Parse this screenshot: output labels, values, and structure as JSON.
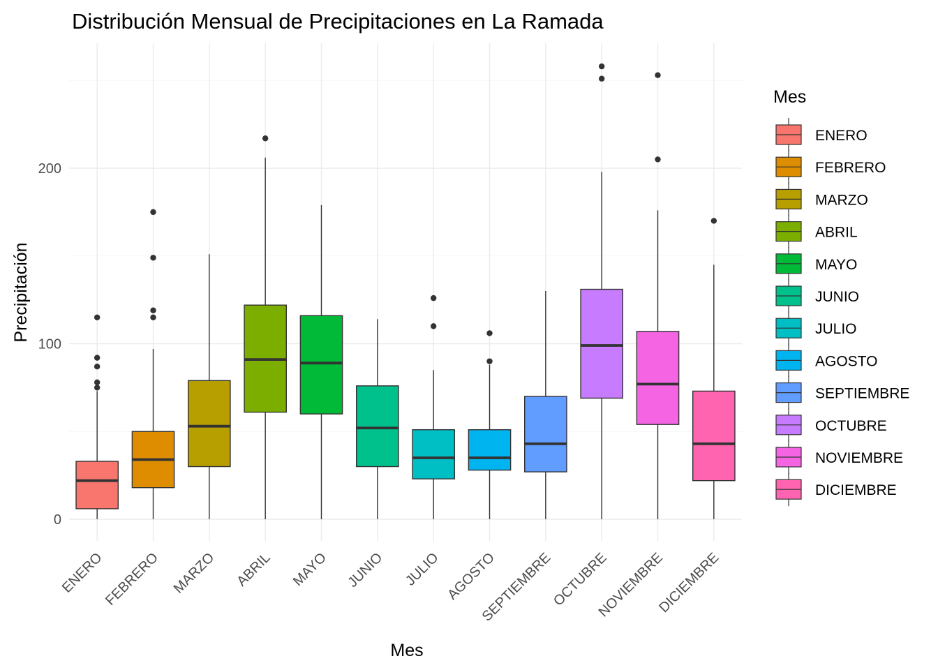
{
  "chart_data": {
    "type": "boxplot",
    "title": "Distribución Mensual de Precipitaciones en La Ramada",
    "xlabel": "Mes",
    "ylabel": "Precipitación",
    "ylim": [
      -15,
      270
    ],
    "yticks": [
      0,
      100,
      200
    ],
    "grid": true,
    "legend": {
      "title": "Mes",
      "position": "right"
    },
    "categories": [
      "ENERO",
      "FEBRERO",
      "MARZO",
      "ABRIL",
      "MAYO",
      "JUNIO",
      "JULIO",
      "AGOSTO",
      "SEPTIEMBRE",
      "OCTUBRE",
      "NOVIEMBRE",
      "DICIEMBRE"
    ],
    "series": [
      {
        "name": "ENERO",
        "color": "#F8766D",
        "whisker_low": 0,
        "q1": 6,
        "median": 22,
        "q3": 33,
        "whisker_high": 73,
        "outliers": [
          75,
          78,
          87,
          92,
          115
        ]
      },
      {
        "name": "FEBRERO",
        "color": "#DE8C00",
        "whisker_low": 0,
        "q1": 18,
        "median": 34,
        "q3": 50,
        "whisker_high": 97,
        "outliers": [
          115,
          119,
          149,
          175
        ]
      },
      {
        "name": "MARZO",
        "color": "#B79F00",
        "whisker_low": 0,
        "q1": 30,
        "median": 53,
        "q3": 79,
        "whisker_high": 151,
        "outliers": []
      },
      {
        "name": "ABRIL",
        "color": "#7CAE00",
        "whisker_low": 0,
        "q1": 61,
        "median": 91,
        "q3": 122,
        "whisker_high": 206,
        "outliers": [
          217
        ]
      },
      {
        "name": "MAYO",
        "color": "#00BA38",
        "whisker_low": 0,
        "q1": 60,
        "median": 89,
        "q3": 116,
        "whisker_high": 179,
        "outliers": []
      },
      {
        "name": "JUNIO",
        "color": "#00C08B",
        "whisker_low": 0,
        "q1": 30,
        "median": 52,
        "q3": 76,
        "whisker_high": 114,
        "outliers": []
      },
      {
        "name": "JULIO",
        "color": "#00BFC4",
        "whisker_low": 0,
        "q1": 23,
        "median": 35,
        "q3": 51,
        "whisker_high": 85,
        "outliers": [
          110,
          126
        ]
      },
      {
        "name": "AGOSTO",
        "color": "#00B4F0",
        "whisker_low": 0,
        "q1": 28,
        "median": 35,
        "q3": 51,
        "whisker_high": 88,
        "outliers": [
          90,
          106
        ]
      },
      {
        "name": "SEPTIEMBRE",
        "color": "#619CFF",
        "whisker_low": 0,
        "q1": 27,
        "median": 43,
        "q3": 70,
        "whisker_high": 130,
        "outliers": []
      },
      {
        "name": "OCTUBRE",
        "color": "#C77CFF",
        "whisker_low": 0,
        "q1": 69,
        "median": 99,
        "q3": 131,
        "whisker_high": 198,
        "outliers": [
          251,
          258
        ]
      },
      {
        "name": "NOVIEMBRE",
        "color": "#F564E3",
        "whisker_low": 0,
        "q1": 54,
        "median": 77,
        "q3": 107,
        "whisker_high": 176,
        "outliers": [
          205,
          253
        ]
      },
      {
        "name": "DICIEMBRE",
        "color": "#FF64B0",
        "whisker_low": 0,
        "q1": 22,
        "median": 43,
        "q3": 73,
        "whisker_high": 145,
        "outliers": [
          170
        ]
      }
    ]
  }
}
